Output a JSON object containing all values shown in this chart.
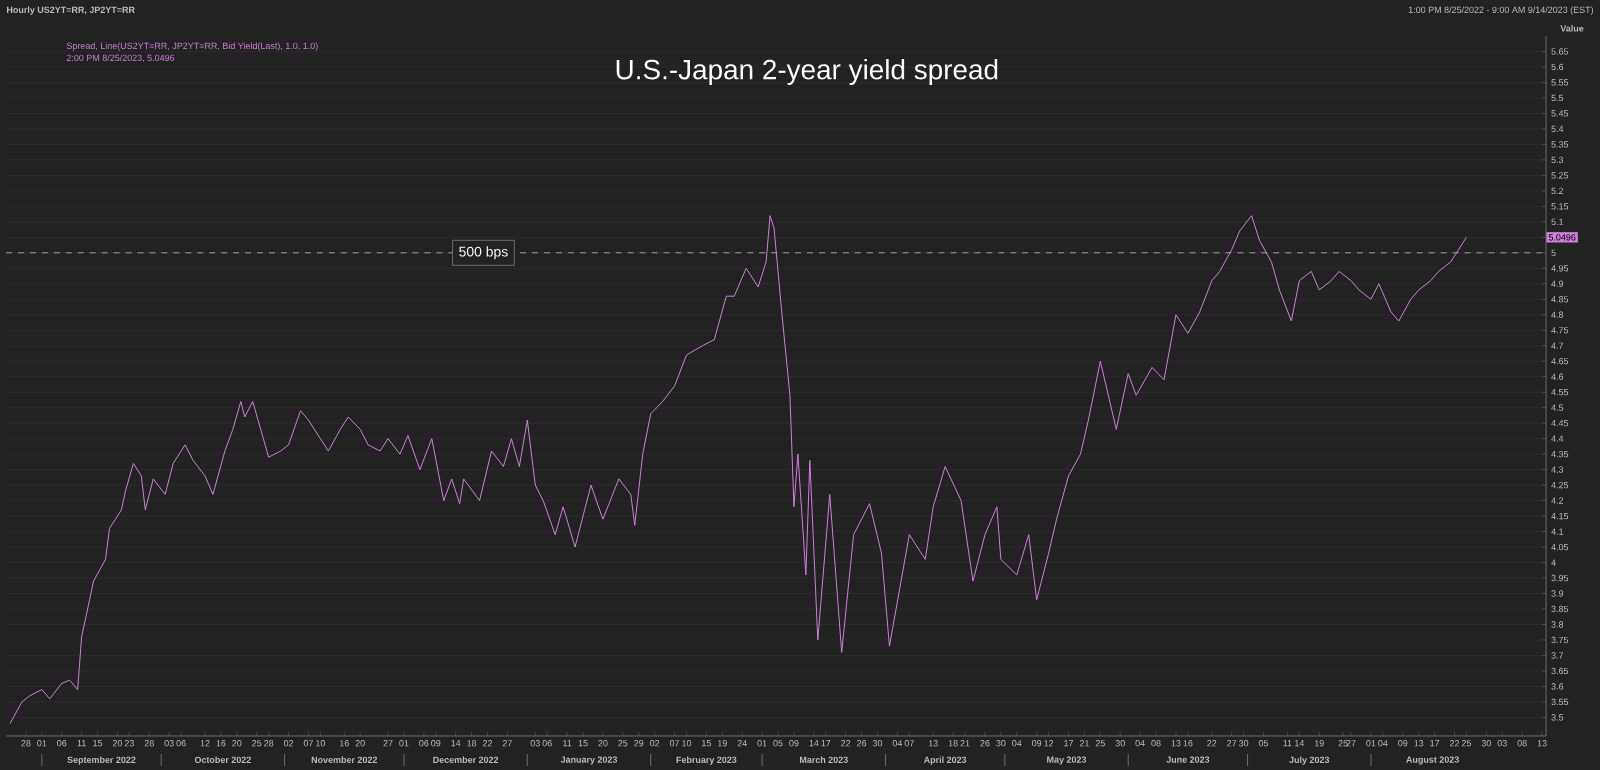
{
  "chart_data": {
    "type": "line",
    "title": "U.S.-Japan 2-year yield spread",
    "ylabel": "Value",
    "xlim": [
      "2022-08-23",
      "2023-09-14"
    ],
    "ylim": [
      3.44,
      5.7
    ],
    "yticks": [
      3.5,
      3.55,
      3.6,
      3.65,
      3.7,
      3.75,
      3.8,
      3.85,
      3.9,
      3.95,
      4,
      4.05,
      4.1,
      4.15,
      4.2,
      4.25,
      4.3,
      4.35,
      4.4,
      4.45,
      4.5,
      4.55,
      4.6,
      4.65,
      4.7,
      4.75,
      4.8,
      4.85,
      4.9,
      4.95,
      5,
      {
        "value": 5.05,
        "label": null
      },
      5.1,
      5.15,
      5.2,
      5.25,
      5.3,
      5.35,
      5.4,
      5.45,
      5.5,
      5.55,
      5.6,
      5.65
    ],
    "xticks": [
      {
        "value": "2022-08-28",
        "label": "28"
      },
      {
        "value": "2022-09-01",
        "label": "01"
      },
      {
        "value": "2022-09-06",
        "label": "06"
      },
      {
        "value": "2022-09-11",
        "label": "11"
      },
      {
        "value": "2022-09-15",
        "label": "15"
      },
      {
        "value": "2022-09-20",
        "label": "20"
      },
      {
        "value": "2022-09-23",
        "label": "23"
      },
      {
        "value": "2022-09-28",
        "label": "28"
      },
      {
        "value": "2022-10-03",
        "label": "03"
      },
      {
        "value": "2022-10-06",
        "label": "06"
      },
      {
        "value": "2022-10-12",
        "label": "12"
      },
      {
        "value": "2022-10-16",
        "label": "16"
      },
      {
        "value": "2022-10-20",
        "label": "20"
      },
      {
        "value": "2022-10-25",
        "label": "25"
      },
      {
        "value": "2022-10-28",
        "label": "28"
      },
      {
        "value": "2022-11-02",
        "label": "02"
      },
      {
        "value": "2022-11-07",
        "label": "07"
      },
      {
        "value": "2022-11-10",
        "label": "10"
      },
      {
        "value": "2022-11-16",
        "label": "16"
      },
      {
        "value": "2022-11-20",
        "label": "20"
      },
      {
        "value": "2022-11-27",
        "label": "27"
      },
      {
        "value": "2022-12-01",
        "label": "01"
      },
      {
        "value": "2022-12-06",
        "label": "06"
      },
      {
        "value": "2022-12-09",
        "label": "09"
      },
      {
        "value": "2022-12-14",
        "label": "14"
      },
      {
        "value": "2022-12-18",
        "label": "18"
      },
      {
        "value": "2022-12-22",
        "label": "22"
      },
      {
        "value": "2022-12-27",
        "label": "27"
      },
      {
        "value": "2023-01-03",
        "label": "03"
      },
      {
        "value": "2023-01-06",
        "label": "06"
      },
      {
        "value": "2023-01-11",
        "label": "11"
      },
      {
        "value": "2023-01-15",
        "label": "15"
      },
      {
        "value": "2023-01-20",
        "label": "20"
      },
      {
        "value": "2023-01-25",
        "label": "25"
      },
      {
        "value": "2023-01-29",
        "label": "29"
      },
      {
        "value": "2023-02-02",
        "label": "02"
      },
      {
        "value": "2023-02-07",
        "label": "07"
      },
      {
        "value": "2023-02-10",
        "label": "10"
      },
      {
        "value": "2023-02-15",
        "label": "15"
      },
      {
        "value": "2023-02-19",
        "label": "19"
      },
      {
        "value": "2023-02-24",
        "label": "24"
      },
      {
        "value": "2023-03-01",
        "label": "01"
      },
      {
        "value": "2023-03-05",
        "label": "05"
      },
      {
        "value": "2023-03-09",
        "label": "09"
      },
      {
        "value": "2023-03-14",
        "label": "14"
      },
      {
        "value": "2023-03-17",
        "label": "17"
      },
      {
        "value": "2023-03-22",
        "label": "22"
      },
      {
        "value": "2023-03-26",
        "label": "26"
      },
      {
        "value": "2023-03-30",
        "label": "30"
      },
      {
        "value": "2023-04-04",
        "label": "04"
      },
      {
        "value": "2023-04-07",
        "label": "07"
      },
      {
        "value": "2023-04-13",
        "label": "13"
      },
      {
        "value": "2023-04-18",
        "label": "18"
      },
      {
        "value": "2023-04-21",
        "label": "21"
      },
      {
        "value": "2023-04-26",
        "label": "26"
      },
      {
        "value": "2023-04-30",
        "label": "30"
      },
      {
        "value": "2023-05-04",
        "label": "04"
      },
      {
        "value": "2023-05-09",
        "label": "09"
      },
      {
        "value": "2023-05-12",
        "label": "12"
      },
      {
        "value": "2023-05-17",
        "label": "17"
      },
      {
        "value": "2023-05-21",
        "label": "21"
      },
      {
        "value": "2023-05-25",
        "label": "25"
      },
      {
        "value": "2023-05-30",
        "label": "30"
      },
      {
        "value": "2023-06-04",
        "label": "04"
      },
      {
        "value": "2023-06-08",
        "label": "08"
      },
      {
        "value": "2023-06-13",
        "label": "13"
      },
      {
        "value": "2023-06-16",
        "label": "16"
      },
      {
        "value": "2023-06-22",
        "label": "22"
      },
      {
        "value": "2023-06-27",
        "label": "27"
      },
      {
        "value": "2023-06-30",
        "label": "30"
      },
      {
        "value": "2023-07-05",
        "label": "05"
      },
      {
        "value": "2023-07-11",
        "label": "11"
      },
      {
        "value": "2023-07-14",
        "label": "14"
      },
      {
        "value": "2023-07-19",
        "label": "19"
      },
      {
        "value": "2023-07-25",
        "label": "25"
      },
      {
        "value": "2023-07-27",
        "label": "27"
      },
      {
        "value": "2023-08-01",
        "label": "01"
      },
      {
        "value": "2023-08-04",
        "label": "04"
      },
      {
        "value": "2023-08-09",
        "label": "09"
      },
      {
        "value": "2023-08-13",
        "label": "13"
      },
      {
        "value": "2023-08-17",
        "label": "17"
      },
      {
        "value": "2023-08-22",
        "label": "22"
      },
      {
        "value": "2023-08-25",
        "label": "25"
      },
      {
        "value": "2023-08-30",
        "label": "30"
      },
      {
        "value": "2023-09-03",
        "label": "03"
      },
      {
        "value": "2023-09-08",
        "label": "08"
      },
      {
        "value": "2023-09-13",
        "label": "13"
      }
    ],
    "grid": "y",
    "legend": "top left",
    "ref_lines": [
      {
        "axis": "y",
        "value": 5,
        "label": "500 bps",
        "color": "#bbbbbb",
        "line_style": "dashed"
      }
    ],
    "annotations": [
      "Hourly US2YT=RR, JP2YT=RR",
      "1:00 PM 8/25/2022 - 9:00 AM 9/14/2023 (EST)",
      "2:00 PM 8/25/2023, 5.0496",
      "5.0496",
      "September 2022",
      "October 2022",
      "November 2022",
      "December 2022",
      "January 2023",
      "February 2023",
      "March 2023",
      "April 2023",
      "May 2023",
      "June 2023",
      "July 2023",
      "August 2023"
    ],
    "series": [
      {
        "name": "Spread, Line(US2YT=RR, JP2YT=RR, Bid Yield(Last), 1.0, 1.0)",
        "color": "#d07fdc",
        "x": [
          "2022-08-24",
          "2022-08-27",
          "2022-08-29",
          "2022-09-01",
          "2022-09-03",
          "2022-09-06",
          "2022-09-08",
          "2022-09-10",
          "2022-09-11",
          "2022-09-13",
          "2022-09-14",
          "2022-09-17",
          "2022-09-18",
          "2022-09-21",
          "2022-09-22",
          "2022-09-24",
          "2022-09-26",
          "2022-09-27",
          "2022-09-29",
          "2022-10-02",
          "2022-10-04",
          "2022-10-07",
          "2022-10-09",
          "2022-10-12",
          "2022-10-14",
          "2022-10-17",
          "2022-10-19",
          "2022-10-21",
          "2022-10-22",
          "2022-10-24",
          "2022-10-26",
          "2022-10-28",
          "2022-10-31",
          "2022-11-02",
          "2022-11-05",
          "2022-11-07",
          "2022-11-10",
          "2022-11-12",
          "2022-11-15",
          "2022-11-17",
          "2022-11-20",
          "2022-11-22",
          "2022-11-25",
          "2022-11-27",
          "2022-11-30",
          "2022-12-02",
          "2022-12-05",
          "2022-12-08",
          "2022-12-11",
          "2022-12-13",
          "2022-12-15",
          "2022-12-16",
          "2022-12-20",
          "2022-12-23",
          "2022-12-26",
          "2022-12-28",
          "2022-12-30",
          "2023-01-01",
          "2023-01-03",
          "2023-01-05",
          "2023-01-08",
          "2023-01-10",
          "2023-01-13",
          "2023-01-17",
          "2023-01-20",
          "2023-01-24",
          "2023-01-27",
          "2023-01-28",
          "2023-01-30",
          "2023-02-01",
          "2023-02-04",
          "2023-02-07",
          "2023-02-10",
          "2023-02-14",
          "2023-02-17",
          "2023-02-20",
          "2023-02-22",
          "2023-02-25",
          "2023-02-28",
          "2023-03-02",
          "2023-03-03",
          "2023-03-04",
          "2023-03-06",
          "2023-03-08",
          "2023-03-09",
          "2023-03-10",
          "2023-03-12",
          "2023-03-13",
          "2023-03-15",
          "2023-03-18",
          "2023-03-21",
          "2023-03-24",
          "2023-03-28",
          "2023-03-31",
          "2023-04-02",
          "2023-04-07",
          "2023-04-11",
          "2023-04-13",
          "2023-04-16",
          "2023-04-20",
          "2023-04-23",
          "2023-04-26",
          "2023-04-29",
          "2023-04-30",
          "2023-05-04",
          "2023-05-07",
          "2023-05-09",
          "2023-05-12",
          "2023-05-14",
          "2023-05-17",
          "2023-05-20",
          "2023-05-22",
          "2023-05-25",
          "2023-05-29",
          "2023-06-01",
          "2023-06-03",
          "2023-06-07",
          "2023-06-10",
          "2023-06-13",
          "2023-06-16",
          "2023-06-19",
          "2023-06-22",
          "2023-06-24",
          "2023-06-27",
          "2023-06-29",
          "2023-07-02",
          "2023-07-04",
          "2023-07-07",
          "2023-07-09",
          "2023-07-12",
          "2023-07-14",
          "2023-07-17",
          "2023-07-19",
          "2023-07-22",
          "2023-07-24",
          "2023-07-27",
          "2023-07-29",
          "2023-08-01",
          "2023-08-03",
          "2023-08-06",
          "2023-08-08",
          "2023-08-11",
          "2023-08-13",
          "2023-08-16",
          "2023-08-18",
          "2023-08-21",
          "2023-08-23",
          "2023-08-25"
        ],
        "values": [
          3.48,
          3.55,
          3.57,
          3.59,
          3.56,
          3.61,
          3.62,
          3.59,
          3.76,
          3.88,
          3.94,
          4.01,
          4.11,
          4.17,
          4.23,
          4.32,
          4.28,
          4.17,
          4.27,
          4.22,
          4.32,
          4.38,
          4.33,
          4.28,
          4.22,
          4.36,
          4.43,
          4.52,
          4.47,
          4.52,
          4.43,
          4.34,
          4.36,
          4.38,
          4.49,
          4.46,
          4.4,
          4.36,
          4.43,
          4.47,
          4.43,
          4.38,
          4.36,
          4.4,
          4.35,
          4.41,
          4.3,
          4.4,
          4.2,
          4.27,
          4.19,
          4.27,
          4.2,
          4.36,
          4.31,
          4.4,
          4.31,
          4.46,
          4.25,
          4.2,
          4.09,
          4.18,
          4.05,
          4.25,
          4.14,
          4.27,
          4.22,
          4.12,
          4.35,
          4.48,
          4.52,
          4.57,
          4.67,
          4.7,
          4.72,
          4.86,
          4.86,
          4.95,
          4.89,
          4.97,
          5.12,
          5.08,
          4.8,
          4.54,
          4.18,
          4.35,
          3.96,
          4.33,
          3.75,
          4.22,
          3.71,
          4.09,
          4.19,
          4.03,
          3.73,
          4.09,
          4.01,
          4.18,
          4.31,
          4.2,
          3.94,
          4.09,
          4.18,
          4.01,
          3.96,
          4.09,
          3.88,
          4.03,
          4.14,
          4.28,
          4.35,
          4.46,
          4.65,
          4.43,
          4.61,
          4.54,
          4.63,
          4.59,
          4.8,
          4.74,
          4.81,
          4.91,
          4.94,
          5.01,
          5.07,
          5.12,
          5.04,
          4.97,
          4.88,
          4.78,
          4.91,
          4.94,
          4.88,
          4.91,
          4.94,
          4.91,
          4.88,
          4.85,
          4.9,
          4.81,
          4.78,
          4.85,
          4.88,
          4.91,
          4.94,
          4.97,
          5.01,
          5.05
        ]
      }
    ]
  }
}
